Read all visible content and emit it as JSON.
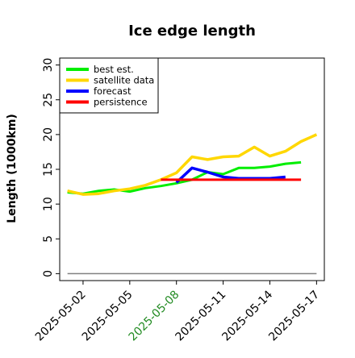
{
  "chart_data": {
    "type": "line",
    "title": "Ice edge length",
    "xlabel": "",
    "ylabel": "Length (1000km)",
    "ylim": [
      -1,
      31
    ],
    "yticks": [
      0,
      5,
      10,
      15,
      20,
      25,
      30
    ],
    "xticks": [
      "2025-05-02",
      "2025-05-05",
      "2025-05-08",
      "2025-05-11",
      "2025-05-14",
      "2025-05-17"
    ],
    "highlight_tick": "2025-05-08",
    "highlight_color": "#228b22",
    "grid": false,
    "legend_position": "top-left",
    "x": [
      "2025-05-01",
      "2025-05-02",
      "2025-05-03",
      "2025-05-04",
      "2025-05-05",
      "2025-05-06",
      "2025-05-07",
      "2025-05-08",
      "2025-05-09",
      "2025-05-10",
      "2025-05-11",
      "2025-05-12",
      "2025-05-13",
      "2025-05-14",
      "2025-05-15",
      "2025-05-16",
      "2025-05-17"
    ],
    "series": [
      {
        "name": "best est.",
        "color": "#00ee00",
        "values": [
          11.7,
          11.5,
          11.9,
          12.1,
          11.8,
          12.3,
          12.6,
          13.0,
          13.5,
          14.6,
          14.3,
          15.2,
          15.2,
          15.4,
          15.8,
          16.0,
          null
        ]
      },
      {
        "name": "satellite data",
        "color": "#ffd700",
        "values": [
          11.9,
          11.4,
          11.5,
          11.9,
          12.2,
          12.7,
          13.5,
          14.5,
          16.8,
          16.4,
          16.8,
          16.9,
          18.2,
          16.9,
          17.6,
          19.0,
          20.0
        ]
      },
      {
        "name": "forecast",
        "color": "#0000ff",
        "values": [
          null,
          null,
          null,
          null,
          null,
          null,
          null,
          13.1,
          15.2,
          14.6,
          13.9,
          13.7,
          13.7,
          13.7,
          13.9,
          null,
          null
        ]
      },
      {
        "name": "persistence",
        "color": "#ff0000",
        "values": [
          null,
          null,
          null,
          null,
          null,
          null,
          13.5,
          13.5,
          13.5,
          13.5,
          13.5,
          13.5,
          13.5,
          13.5,
          13.5,
          13.5,
          null
        ]
      }
    ],
    "baseline": {
      "value": 0,
      "color": "#808080"
    }
  }
}
